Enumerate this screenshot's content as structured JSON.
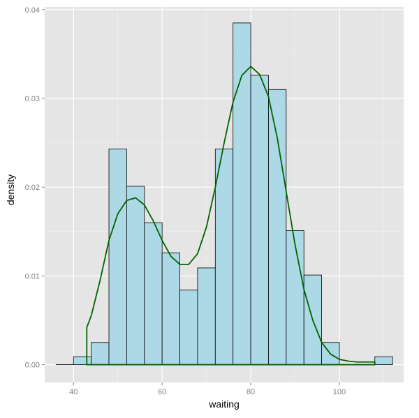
{
  "chart_data": {
    "type": "bar",
    "xlabel": "waiting",
    "ylabel": "density",
    "xlim": [
      33.5,
      114.5
    ],
    "ylim": [
      -0.002,
      0.0403
    ],
    "x_ticks": [
      40,
      60,
      80,
      100
    ],
    "y_ticks": [
      0.0,
      0.01,
      0.02,
      0.03,
      0.04
    ],
    "x_tick_labels": [
      "40",
      "60",
      "80",
      "100"
    ],
    "y_tick_labels": [
      "0.00",
      "0.01",
      "0.02",
      "0.03",
      "0.04"
    ],
    "grid": true,
    "bins": [
      {
        "x0": 36,
        "x1": 40,
        "density": 0.0
      },
      {
        "x0": 40,
        "x1": 44,
        "density": 0.0009
      },
      {
        "x0": 44,
        "x1": 48,
        "density": 0.0025
      },
      {
        "x0": 48,
        "x1": 52,
        "density": 0.0243
      },
      {
        "x0": 52,
        "x1": 56,
        "density": 0.0201
      },
      {
        "x0": 56,
        "x1": 60,
        "density": 0.016
      },
      {
        "x0": 60,
        "x1": 64,
        "density": 0.0126
      },
      {
        "x0": 64,
        "x1": 68,
        "density": 0.0084
      },
      {
        "x0": 68,
        "x1": 72,
        "density": 0.0109
      },
      {
        "x0": 72,
        "x1": 76,
        "density": 0.0243
      },
      {
        "x0": 76,
        "x1": 80,
        "density": 0.0385
      },
      {
        "x0": 80,
        "x1": 84,
        "density": 0.0326
      },
      {
        "x0": 84,
        "x1": 88,
        "density": 0.031
      },
      {
        "x0": 88,
        "x1": 92,
        "density": 0.0151
      },
      {
        "x0": 92,
        "x1": 96,
        "density": 0.0101
      },
      {
        "x0": 96,
        "x1": 100,
        "density": 0.0025
      },
      {
        "x0": 100,
        "x1": 104,
        "density": 0.0
      },
      {
        "x0": 104,
        "x1": 108,
        "density": 0.0
      },
      {
        "x0": 108,
        "x1": 112,
        "density": 0.0009
      }
    ],
    "density_curve": {
      "x": [
        43,
        44,
        46,
        48,
        50,
        52,
        54,
        56,
        58,
        60,
        62,
        64,
        66,
        68,
        70,
        72,
        74,
        76,
        78,
        80,
        82,
        84,
        86,
        88,
        90,
        92,
        94,
        96,
        98,
        100,
        102,
        104,
        106,
        108
      ],
      "y": [
        0.0042,
        0.0055,
        0.0095,
        0.014,
        0.017,
        0.0185,
        0.0188,
        0.018,
        0.0162,
        0.014,
        0.0122,
        0.0113,
        0.0113,
        0.0125,
        0.0155,
        0.02,
        0.025,
        0.0296,
        0.0326,
        0.0336,
        0.0327,
        0.0302,
        0.0255,
        0.0195,
        0.0135,
        0.0085,
        0.005,
        0.0025,
        0.0012,
        0.0006,
        0.0004,
        0.0003,
        0.0003,
        0.0003
      ]
    },
    "colors": {
      "panel_background": "#e5e5e5",
      "grid_major": "#ffffff",
      "grid_minor": "#f2f2f2",
      "bar_fill": "#add8e6",
      "bar_outline": "#000000",
      "density_line": "#006400",
      "tick_label": "#7f7f7f",
      "tick_mark": "#7f7f7f"
    }
  }
}
